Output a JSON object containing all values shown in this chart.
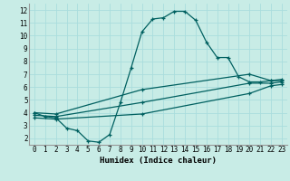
{
  "xlabel": "Humidex (Indice chaleur)",
  "bg_color": "#c8ece6",
  "line_color": "#006060",
  "grid_color": "#aadddd",
  "xlim": [
    -0.5,
    23.5
  ],
  "ylim": [
    1.5,
    12.5
  ],
  "xticks": [
    0,
    1,
    2,
    3,
    4,
    5,
    6,
    7,
    8,
    9,
    10,
    11,
    12,
    13,
    14,
    15,
    16,
    17,
    18,
    19,
    20,
    21,
    22,
    23
  ],
  "yticks": [
    2,
    3,
    4,
    5,
    6,
    7,
    8,
    9,
    10,
    11,
    12
  ],
  "line1_x": [
    0,
    1,
    2,
    3,
    4,
    5,
    6,
    7,
    8,
    9,
    10,
    11,
    12,
    13,
    14,
    15,
    16,
    17,
    18,
    19,
    20,
    21,
    22,
    23
  ],
  "line1_y": [
    4.0,
    3.7,
    3.6,
    2.8,
    2.6,
    1.8,
    1.7,
    2.3,
    4.8,
    7.5,
    10.3,
    11.3,
    11.4,
    11.9,
    11.9,
    11.2,
    9.5,
    8.3,
    8.3,
    6.8,
    6.4,
    6.4,
    6.5,
    6.5
  ],
  "line2_x": [
    0,
    2,
    10,
    20,
    22,
    23
  ],
  "line2_y": [
    4.0,
    3.9,
    5.8,
    7.0,
    6.5,
    6.6
  ],
  "line3_x": [
    0,
    2,
    10,
    20,
    22,
    23
  ],
  "line3_y": [
    3.8,
    3.7,
    4.8,
    6.3,
    6.3,
    6.4
  ],
  "line4_x": [
    0,
    2,
    10,
    20,
    22,
    23
  ],
  "line4_y": [
    3.6,
    3.5,
    3.9,
    5.5,
    6.1,
    6.2
  ]
}
